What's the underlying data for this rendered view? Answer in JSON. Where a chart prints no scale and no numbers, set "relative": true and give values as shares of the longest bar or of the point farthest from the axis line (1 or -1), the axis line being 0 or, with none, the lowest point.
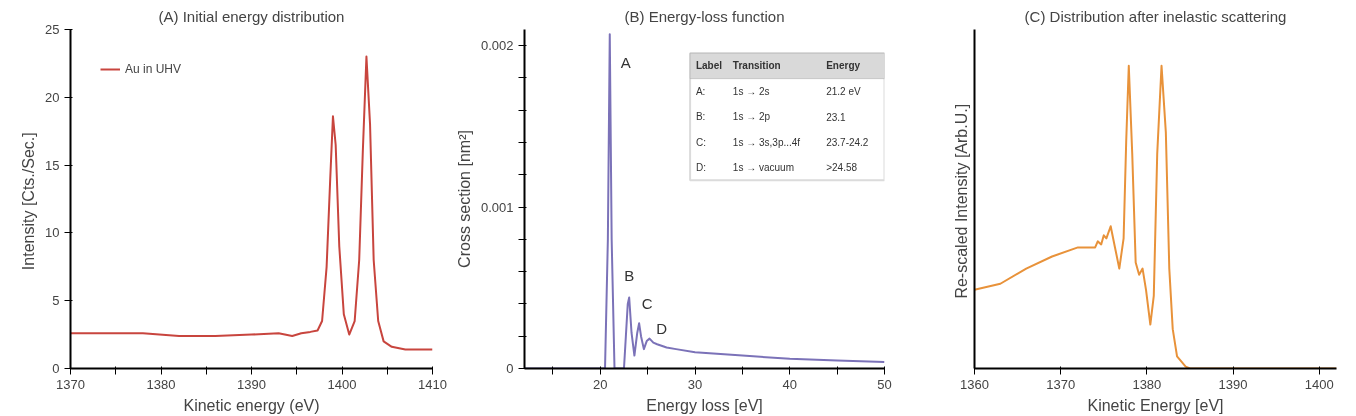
{
  "chart_data": [
    {
      "type": "line",
      "title": "(A) Initial energy distribution",
      "xlabel": "Kinetic energy (eV)",
      "ylabel": "Intensity  [Cts./Sec.]",
      "xlim": [
        1370,
        1410
      ],
      "ylim": [
        0,
        25
      ],
      "xticks": [
        1370,
        {
          "value": 1375,
          "label": null
        },
        1380,
        {
          "value": 1385,
          "label": null
        },
        1390,
        {
          "value": 1395,
          "label": null
        },
        1400,
        {
          "value": 1405,
          "label": null
        },
        1410
      ],
      "yticks": [
        0,
        5,
        10,
        15,
        20,
        25
      ],
      "grid": false,
      "legend": "top left",
      "series": [
        {
          "name": "Au in UHV",
          "color": "#c8453e",
          "x": [
            1370,
            1375,
            1378,
            1382,
            1386,
            1390,
            1393,
            1394.5,
            1395.5,
            1396.5,
            1397.3,
            1397.8,
            1398.3,
            1398.7,
            1399.0,
            1399.3,
            1399.7,
            1400.2,
            1400.8,
            1401.4,
            1401.9,
            1402.3,
            1402.7,
            1403.1,
            1403.5,
            1404,
            1404.6,
            1405.5,
            1407,
            1410
          ],
          "values": [
            2.6,
            2.6,
            2.6,
            2.4,
            2.4,
            2.5,
            2.6,
            2.4,
            2.6,
            2.7,
            2.8,
            3.5,
            7.5,
            14,
            18.6,
            16.5,
            9,
            4,
            2.5,
            3.5,
            8,
            16,
            23,
            18,
            8,
            3.5,
            2.0,
            1.6,
            1.4,
            1.4
          ]
        }
      ]
    },
    {
      "type": "line",
      "title": "(B) Energy-loss function",
      "xlabel": "Energy loss [eV]",
      "ylabel": "Cross section [nm²]",
      "xlim": [
        12,
        50
      ],
      "ylim": [
        0,
        0.0021
      ],
      "xticks": [
        {
          "value": 15,
          "label": null
        },
        20,
        {
          "value": 25,
          "label": null
        },
        30,
        {
          "value": 35,
          "label": null
        },
        40,
        {
          "value": 45,
          "label": null
        },
        50
      ],
      "yticks": [
        0,
        {
          "value": 0.0002,
          "label": null
        },
        {
          "value": 0.0004,
          "label": null
        },
        {
          "value": 0.0006,
          "label": null
        },
        {
          "value": 0.0008,
          "label": null
        },
        0.001,
        {
          "value": 0.0012,
          "label": null
        },
        {
          "value": 0.0014,
          "label": null
        },
        {
          "value": 0.0016,
          "label": null
        },
        {
          "value": 0.0018,
          "label": null
        },
        0.002
      ],
      "grid": false,
      "annotations": [
        {
          "text": "A",
          "x": 21.0,
          "y": 0.00207
        },
        {
          "text": "B",
          "x": 23.05,
          "y": 0.00044
        },
        {
          "text": "C",
          "x": 24.1,
          "y": 0.00028
        },
        {
          "text": "D",
          "x": 25.2,
          "y": 0.000185
        },
        "Label",
        "Transition",
        "Energy",
        "A:",
        "1s → 2s",
        "21.2 eV",
        "B:",
        "1s → 2p",
        "23.1",
        "C:",
        "1s → 3s,3p...4f",
        "23.7-24.2",
        "D:",
        "1s → vacuum",
        ">24.58"
      ],
      "series": [
        {
          "color": "#7b72b8",
          "x": [
            12,
            15,
            20,
            20.5,
            20.8,
            21.0,
            21.2,
            21.5,
            22.0,
            22.5,
            22.7,
            22.9,
            23.05,
            23.3,
            23.6,
            23.9,
            24.1,
            24.3,
            24.6,
            24.9,
            25.2,
            25.6,
            26,
            27,
            28,
            30,
            35,
            40,
            45,
            50
          ],
          "values": [
            0,
            0,
            0,
            0,
            0.0008,
            0.00207,
            0.0008,
            0,
            0,
            0,
            0.0002,
            0.0004,
            0.00044,
            0.00022,
            8e-05,
            0.00022,
            0.00028,
            0.0002,
            0.00012,
            0.00017,
            0.000185,
            0.00016,
            0.00015,
            0.00013,
            0.00012,
            0.0001,
            8e-05,
            6e-05,
            5e-05,
            4e-05
          ]
        }
      ]
    },
    {
      "type": "line",
      "title": "(C) Distribution after inelastic scattering",
      "xlabel": "Kinetic Energy [eV]",
      "ylabel": "Re-scaled Intensity  [Arb.U.]",
      "xlim": [
        1360,
        1402
      ],
      "xticks": [
        1360,
        1370,
        1380,
        1390,
        1400
      ],
      "relative": true,
      "grid": false,
      "series": [
        {
          "color": "#e8923a",
          "x": [
            1360,
            1363,
            1366,
            1369,
            1372,
            1373.5,
            1374,
            1374.3,
            1374.7,
            1375,
            1375.3,
            1375.8,
            1376.3,
            1376.8,
            1377.3,
            1377.6,
            1377.9,
            1378.3,
            1378.7,
            1379.1,
            1379.5,
            1379.9,
            1380.4,
            1380.8,
            1381.2,
            1381.7,
            1382.2,
            1382.6,
            1383,
            1383.5,
            1384.5,
            1385,
            1402
          ],
          "values": [
            0.26,
            0.28,
            0.33,
            0.37,
            0.4,
            0.4,
            0.4,
            0.42,
            0.41,
            0.44,
            0.43,
            0.47,
            0.4,
            0.33,
            0.43,
            0.75,
            1.0,
            0.71,
            0.35,
            0.31,
            0.33,
            0.26,
            0.145,
            0.24,
            0.71,
            1.0,
            0.78,
            0.33,
            0.13,
            0.04,
            0.006,
            0,
            0
          ]
        }
      ]
    }
  ]
}
